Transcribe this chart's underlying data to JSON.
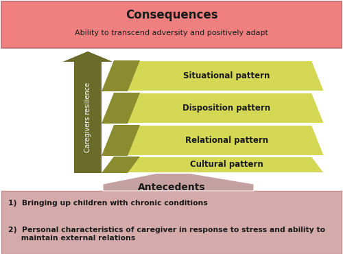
{
  "title": "Consequences",
  "subtitle": "Ability to transcend adversity and positively adapt",
  "antecedents_title": "Antecedents",
  "antecedents_items": [
    "1)  Bringing up children with chronic conditions",
    "2)  Personal characteristics of caregiver in response to stress and ability to\n     maintain external relations"
  ],
  "patterns": [
    "Cultural pattern",
    "Relational pattern",
    "Disposition pattern",
    "Situational pattern"
  ],
  "arrow_label": "Caregivers resilience",
  "consequences_bg": "#F08080",
  "arrow_color_dark": "#6B6B2A",
  "arrow_color_light": "#8B8B3A",
  "pattern_left_color": "#8B8B30",
  "pattern_right_color": "#D4D855",
  "antecedents_arrow_color": "#C4A0A0",
  "bottom_bg": "#D4AAAA",
  "figure_bg": "#FFFFFF",
  "border_color": "#AAAAAA"
}
